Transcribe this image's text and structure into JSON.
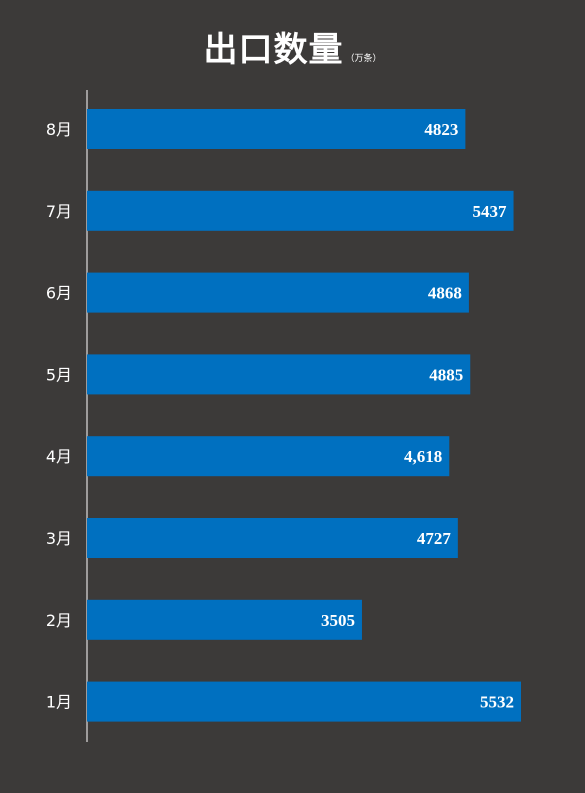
{
  "chart_data": {
    "type": "bar",
    "orientation": "horizontal",
    "title": "出口数量",
    "unit": "（万条）",
    "categories": [
      "8月",
      "7月",
      "6月",
      "5月",
      "4月",
      "3月",
      "2月",
      "1月"
    ],
    "values": [
      4823,
      5437,
      4868,
      4885,
      4618,
      4727,
      3505,
      5532
    ],
    "value_labels": [
      "4823",
      "5437",
      "4868",
      "4885",
      "4,618",
      "4727",
      "3505",
      "5532"
    ],
    "xlim": [
      0,
      5532
    ],
    "grid": false,
    "legend": "none",
    "colors": {
      "background": "#3c3a39",
      "bar": "#0070c0",
      "text": "#ffffff",
      "axis": "#ffffff"
    }
  }
}
